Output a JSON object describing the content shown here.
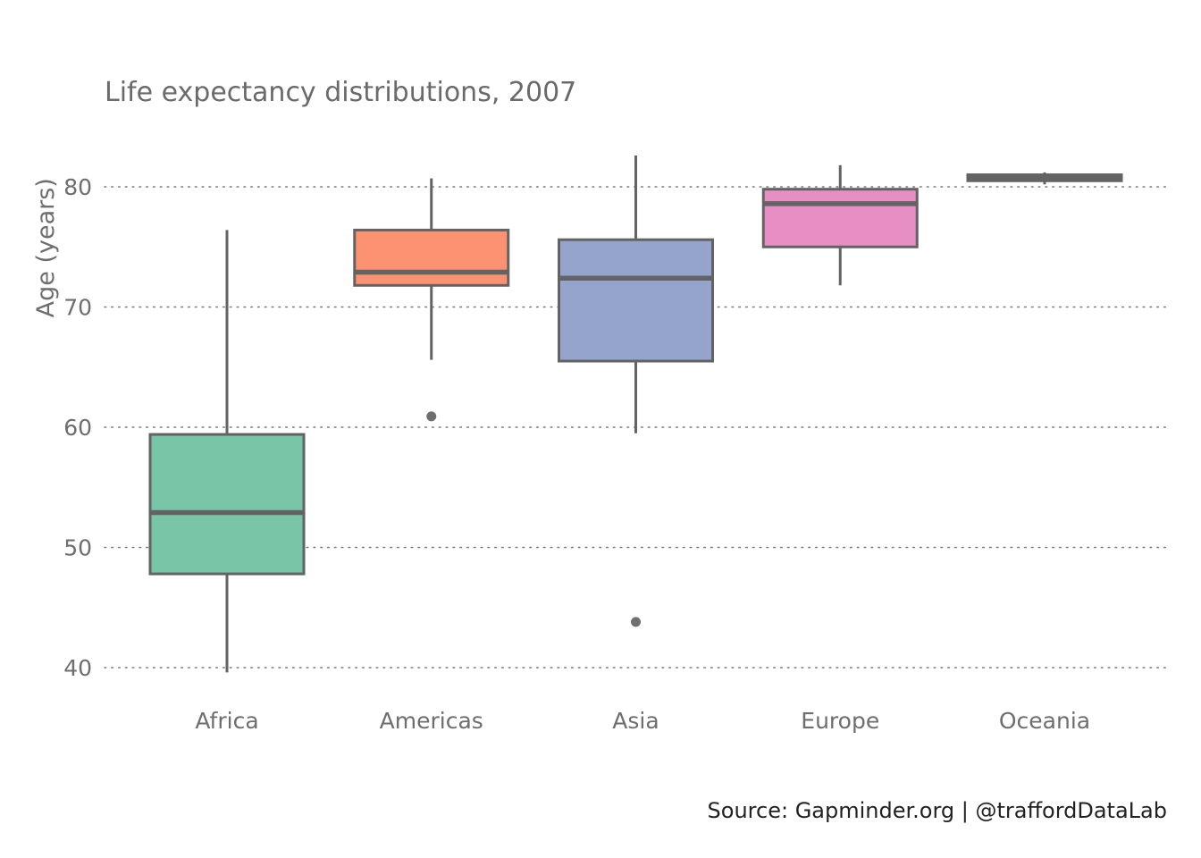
{
  "chart_data": {
    "type": "box",
    "title": "Life expectancy distributions, 2007",
    "xlabel": "",
    "ylabel": "Age (years)",
    "ylim": [
      38.5,
      84
    ],
    "yticks": [
      40,
      50,
      60,
      70,
      80
    ],
    "grid": "horizontal dotted",
    "legend": "none",
    "caption": "Source: Gapminder.org  |  @traffordDataLab",
    "categories": [
      "Africa",
      "Americas",
      "Asia",
      "Europe",
      "Oceania"
    ],
    "boxes": [
      {
        "category": "Africa",
        "whisker_low": 39.6,
        "q1": 47.8,
        "median": 52.9,
        "q3": 59.4,
        "whisker_high": 76.4,
        "outliers": [],
        "color": "#78c6a7"
      },
      {
        "category": "Americas",
        "whisker_low": 65.6,
        "q1": 71.8,
        "median": 72.9,
        "q3": 76.4,
        "whisker_high": 80.7,
        "outliers": [
          60.9
        ],
        "color": "#fc9272"
      },
      {
        "category": "Asia",
        "whisker_low": 59.5,
        "q1": 65.5,
        "median": 72.4,
        "q3": 75.6,
        "whisker_high": 82.6,
        "outliers": [
          43.8
        ],
        "color": "#94a4cd"
      },
      {
        "category": "Europe",
        "whisker_low": 71.8,
        "q1": 75.0,
        "median": 78.6,
        "q3": 79.8,
        "whisker_high": 81.8,
        "outliers": [],
        "color": "#e78ec4"
      },
      {
        "category": "Oceania",
        "whisker_low": 80.2,
        "q1": 80.5,
        "median": 80.7,
        "q3": 81.0,
        "whisker_high": 81.2,
        "outliers": [],
        "color": "#e5c494"
      }
    ],
    "line_color": "#636363",
    "grid_color": "#7a7a7a",
    "tick_color": "#6e6e6e"
  }
}
